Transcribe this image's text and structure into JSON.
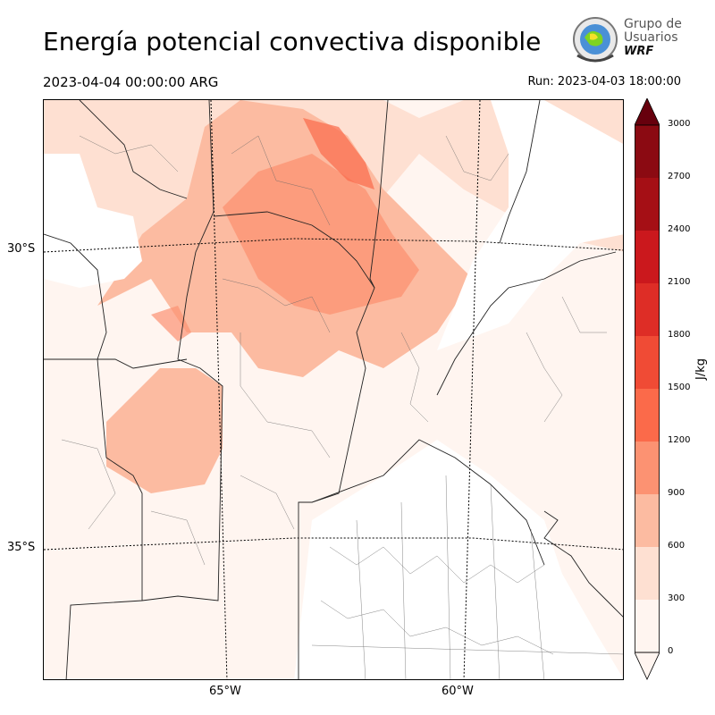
{
  "header": {
    "title": "Energía potencial convectiva disponible",
    "valid_time": "2023-04-04 00:00:00 ARG",
    "run": "Run: 2023-04-03 18:00:00"
  },
  "logo": {
    "line1": "Grupo de",
    "line2": "Usuarios",
    "line3": "WRF",
    "icon": "globe-seal-icon"
  },
  "map": {
    "lat_labels": [
      "30°S",
      "35°S"
    ],
    "lon_labels": [
      "65°W",
      "60°W"
    ]
  },
  "colorbar": {
    "unit": "J/kg",
    "ticks": [
      "0",
      "300",
      "600",
      "900",
      "1200",
      "1500",
      "1800",
      "2100",
      "2400",
      "2700",
      "3000"
    ],
    "colors": [
      "#fff5f0",
      "#fee0d2",
      "#fcbba1",
      "#fc9272",
      "#fb6a4a",
      "#f04b35",
      "#de2d26",
      "#cb181d",
      "#a50f15",
      "#8b0a12",
      "#67000d"
    ]
  }
}
